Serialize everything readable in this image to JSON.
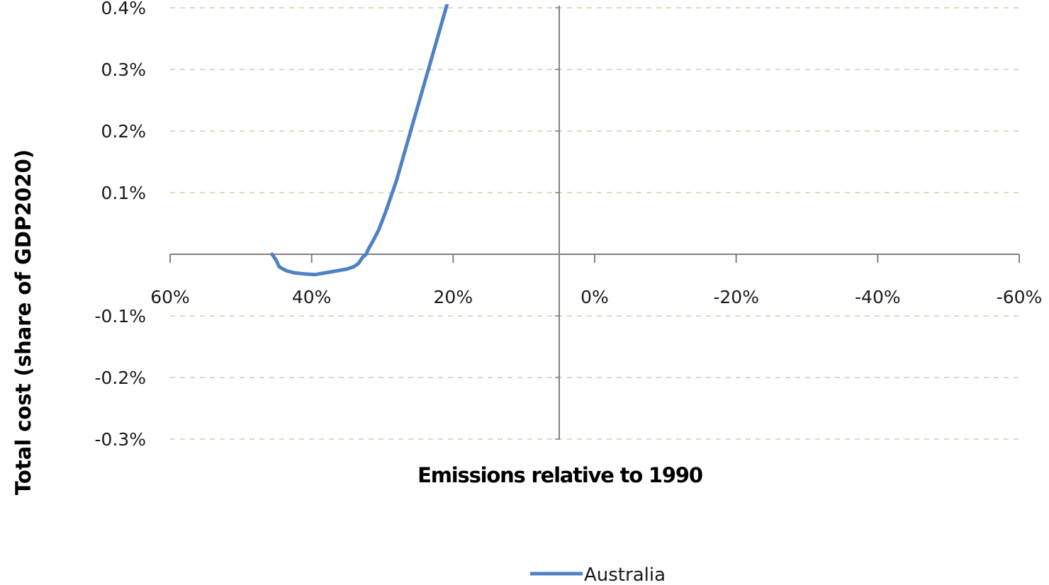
{
  "chart_data": {
    "type": "line",
    "title": "",
    "xlabel": "Emissions relative to 1990",
    "ylabel": "Total cost (share of GDP2020)",
    "x_reversed": true,
    "xlim": [
      60,
      -60
    ],
    "ylim": [
      -0.35,
      0.45
    ],
    "x_ticks": [
      60,
      40,
      20,
      0,
      -20,
      -40,
      -60
    ],
    "x_tick_labels": [
      "60%",
      "40%",
      "20%",
      "0%",
      "-20%",
      "-40%",
      "-60%"
    ],
    "y_ticks": [
      0.4,
      0.3,
      0.2,
      0.1,
      -0.1,
      -0.2,
      -0.3
    ],
    "y_tick_labels": [
      "0.4%",
      "0.3%",
      "0.2%",
      "0.1%",
      "-0.1%",
      "-0.2%",
      "-0.3%"
    ],
    "y_axis_at_x": 0,
    "x_axis_at_y": 0,
    "grid": {
      "horizontal": true,
      "style": "dashed",
      "color": "#d8dcc0"
    },
    "legend": "bottom-center",
    "series": [
      {
        "name": "Australia",
        "color": "#4f81c4",
        "x": [
          45.6,
          45.0,
          44.6,
          44.2,
          43.5,
          42.5,
          41.0,
          39.5,
          38.0,
          36.5,
          35.0,
          34.0,
          33.4,
          32.8,
          32.3,
          31.9,
          31.4,
          30.5,
          29.5,
          28.0,
          26.0,
          24.0,
          22.0,
          20.5,
          19.0
        ],
        "y": [
          0.0,
          -0.01,
          -0.02,
          -0.023,
          -0.027,
          -0.03,
          -0.032,
          -0.033,
          -0.03,
          -0.027,
          -0.024,
          -0.02,
          -0.015,
          -0.005,
          0.0,
          0.01,
          0.02,
          0.04,
          0.07,
          0.12,
          0.2,
          0.28,
          0.36,
          0.42,
          0.49
        ]
      }
    ]
  }
}
